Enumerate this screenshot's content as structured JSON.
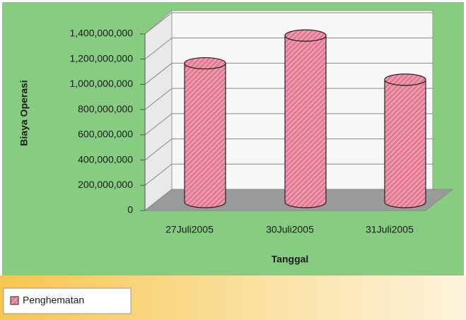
{
  "chart_data": {
    "type": "bar3d",
    "y_label": "Biaya Operasi",
    "x_label": "Tanggal",
    "categories": [
      "27Juli2005",
      "30Juli2005",
      "31Juli2005"
    ],
    "series": [
      {
        "name": "Penghematan",
        "color": "#e67a94",
        "values": [
          1100000000,
          1320000000,
          970000000
        ]
      }
    ],
    "ylim": [
      0,
      1400000000
    ],
    "yticks": [
      0,
      {
        "value": 200000000,
        "label": "200,000,000"
      },
      {
        "value": 400000000,
        "label": "400,000,000"
      },
      {
        "value": 600000000,
        "label": "600,000,000"
      },
      {
        "value": 800000000,
        "label": "800,000,000"
      },
      {
        "value": 1000000000,
        "label": "1,000,000,000"
      },
      {
        "value": 1200000000,
        "label": "1,200,000,000"
      },
      {
        "value": 1400000000,
        "label": "1,400,000,000"
      }
    ],
    "grid": true,
    "legend": "bottom-left"
  }
}
